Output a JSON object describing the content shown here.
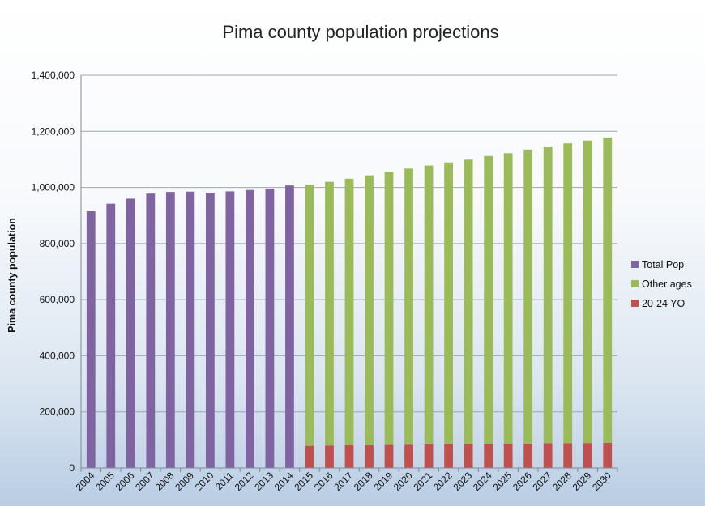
{
  "chart_data": {
    "type": "bar",
    "stacked": true,
    "title": "Pima county population projections",
    "xlabel": "",
    "ylabel": "Pima county population",
    "ylim": [
      0,
      1400000
    ],
    "yticks": [
      "0",
      "200,000",
      "400,000",
      "600,000",
      "800,000",
      "1,000,000",
      "1,200,000",
      "1,400,000"
    ],
    "ytick_values": [
      0,
      200000,
      400000,
      600000,
      800000,
      1000000,
      1200000,
      1400000
    ],
    "grid": true,
    "legend_position": "right",
    "categories": [
      "2004",
      "2005",
      "2006",
      "2007",
      "2008",
      "2009",
      "2010",
      "2011",
      "2012",
      "2013",
      "2014",
      "2015",
      "2016",
      "2017",
      "2018",
      "2019",
      "2020",
      "2021",
      "2022",
      "2023",
      "2024",
      "2025",
      "2026",
      "2027",
      "2028",
      "2029",
      "2030"
    ],
    "series": [
      {
        "name": "Total Pop",
        "color": "#8064a2",
        "values": [
          915000,
          942000,
          960000,
          978000,
          984000,
          985000,
          981000,
          986000,
          991000,
          996000,
          1007000,
          null,
          null,
          null,
          null,
          null,
          null,
          null,
          null,
          null,
          null,
          null,
          null,
          null,
          null,
          null,
          null
        ]
      },
      {
        "name": "20-24 YO",
        "color": "#c0504d",
        "values": [
          null,
          null,
          null,
          null,
          null,
          null,
          null,
          null,
          null,
          null,
          null,
          79000,
          80000,
          81000,
          81000,
          82000,
          83000,
          84000,
          85000,
          86000,
          86000,
          86000,
          87000,
          88000,
          88000,
          89000,
          90000
        ]
      },
      {
        "name": "Other ages",
        "color": "#9bbb59",
        "values": [
          null,
          null,
          null,
          null,
          null,
          null,
          null,
          null,
          null,
          null,
          null,
          931000,
          940000,
          950000,
          962000,
          973000,
          984000,
          994000,
          1004000,
          1013000,
          1026000,
          1036000,
          1048000,
          1058000,
          1069000,
          1078000,
          1088000
        ]
      }
    ],
    "legend": [
      {
        "name": "Total Pop",
        "color": "#8064a2"
      },
      {
        "name": "Other ages",
        "color": "#9bbb59"
      },
      {
        "name": "20-24 YO",
        "color": "#c0504d"
      }
    ]
  }
}
